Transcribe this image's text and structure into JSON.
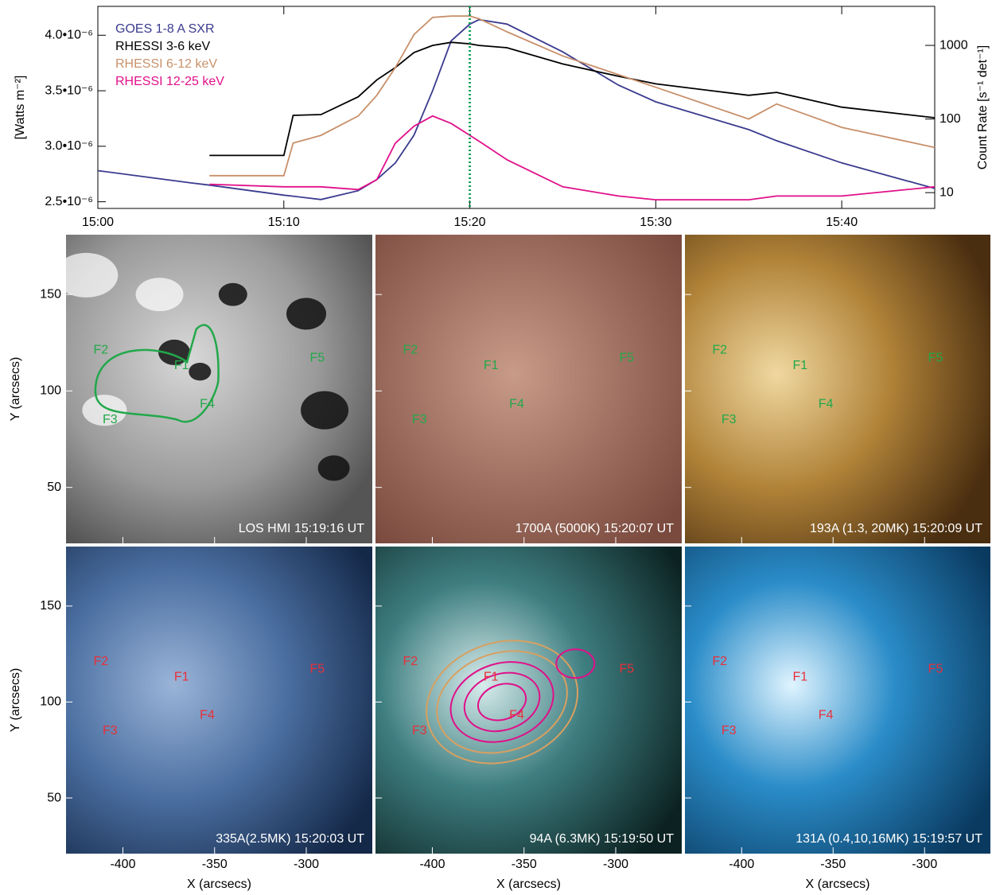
{
  "chart_data": {
    "type": "line",
    "x": [
      0,
      5,
      6,
      10,
      10.5,
      12,
      14,
      15,
      16,
      17,
      18,
      19,
      20,
      20.5,
      22,
      25,
      28,
      30,
      35,
      36.5,
      40,
      45
    ],
    "xlim": [
      0,
      45
    ],
    "xticks": [
      {
        "value": 0,
        "label": "15:00"
      },
      {
        "value": 10,
        "label": "15:10"
      },
      {
        "value": 20,
        "label": "15:20"
      },
      {
        "value": 30,
        "label": "15:30"
      },
      {
        "value": 40,
        "label": "15:40"
      }
    ],
    "ylabel": "[Watts m⁻²]",
    "ylim": [
      2.44e-06,
      4.26e-06
    ],
    "yticks": [
      {
        "value": 2.5e-06,
        "label": "2.5•10⁻⁶"
      },
      {
        "value": 3e-06,
        "label": "3.0•10⁻⁶"
      },
      {
        "value": 3.5e-06,
        "label": "3.5•10⁻⁶"
      },
      {
        "value": 4e-06,
        "label": "4.0•10⁻⁶"
      }
    ],
    "y2label": "Count Rate [s⁻¹ det⁻¹]",
    "y2lim": [
      6.1,
      3390
    ],
    "y2log": true,
    "y2ticks": [
      10,
      100,
      1000
    ],
    "vline": {
      "value": 20,
      "color": "#12a05a"
    },
    "series": [
      {
        "name": "GOES 1-8 A SXR",
        "color": "#3b3b8f",
        "values": [
          2.78e-06,
          2.67e-06,
          2.65e-06,
          2.56e-06,
          2.55e-06,
          2.52e-06,
          2.6e-06,
          2.7e-06,
          2.85e-06,
          3.1e-06,
          3.5e-06,
          3.95e-06,
          4.1e-06,
          4.14e-06,
          4.1e-06,
          3.85e-06,
          3.55e-06,
          3.4e-06,
          3.15e-06,
          3.05e-06,
          2.85e-06,
          2.62e-06
        ]
      },
      {
        "name": "RHESSI 3-6 keV",
        "color": "#000000",
        "axis": "y2",
        "values": [
          null,
          null,
          32,
          32,
          112,
          115,
          200,
          340,
          500,
          800,
          1000,
          1100,
          1050,
          1000,
          930,
          560,
          380,
          300,
          210,
          230,
          145,
          104
        ]
      },
      {
        "name": "RHESSI 6-12 keV",
        "color": "#c8906a",
        "axis": "y2",
        "values": [
          null,
          null,
          17,
          17,
          47,
          60,
          110,
          210,
          500,
          1400,
          2400,
          2500,
          2500,
          2300,
          1530,
          720,
          400,
          270,
          100,
          160,
          77,
          41
        ]
      },
      {
        "name": "RHESSI 12-25 keV",
        "color": "#e0108a",
        "axis": "y2",
        "values": [
          null,
          null,
          13,
          12,
          12,
          12,
          11,
          15,
          47,
          80,
          110,
          87,
          60,
          50,
          28,
          12,
          9,
          8,
          8,
          9,
          9,
          12
        ]
      }
    ]
  },
  "images": {
    "xlabel": "X (arcsecs)",
    "ylabel": "Y (arcsecs)",
    "xlim": [
      -431,
      -264
    ],
    "ylim": [
      21,
      181
    ],
    "xticks": [
      -400,
      -350,
      -300
    ],
    "yticks": [
      50,
      100,
      150
    ],
    "feature_labels": [
      "F1",
      "F2",
      "F3",
      "F4",
      "F5"
    ],
    "panels": [
      {
        "caption": "LOS HMI 15:19:16 UT",
        "label_color": "#22a84a"
      },
      {
        "caption": "1700A (5000K) 15:20:07 UT",
        "label_color": "#22a84a"
      },
      {
        "caption": "193A (1.3, 20MK) 15:20:09 UT",
        "label_color": "#22a84a"
      },
      {
        "caption": "335A(2.5MK) 15:20:03 UT",
        "label_color": "#e8303a"
      },
      {
        "caption": "94A (6.3MK) 15:19:50 UT",
        "label_color": "#e8303a"
      },
      {
        "caption": "131A (0.4,10,16MK) 15:19:57 UT",
        "label_color": "#e8303a"
      }
    ]
  }
}
